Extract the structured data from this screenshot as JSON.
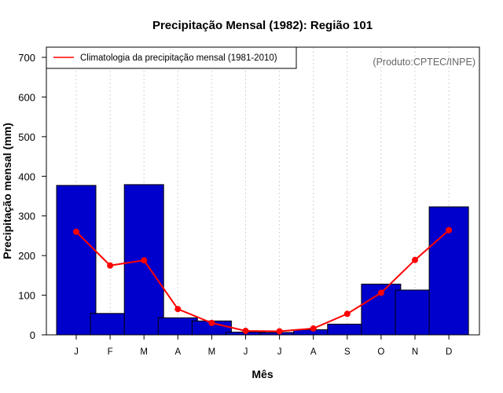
{
  "chart_data": {
    "type": "bar",
    "title": "Precipitação Mensal (1982): Região 101",
    "xlabel": "Mês",
    "ylabel": "Precipitação mensal (mm)",
    "ylim": [
      0,
      700
    ],
    "yticks": [
      0,
      100,
      200,
      300,
      400,
      500,
      600,
      700
    ],
    "grid": true,
    "categories": [
      "J",
      "F",
      "M",
      "A",
      "M",
      "J",
      "J",
      "A",
      "S",
      "O",
      "N",
      "D"
    ],
    "series": [
      {
        "name": "Precipitação mensal (1982)",
        "type": "bar",
        "color": "#0000CC",
        "values": [
          377,
          54,
          379,
          43,
          35,
          7,
          6,
          13,
          27,
          128,
          113,
          323
        ]
      },
      {
        "name": "Climatologia da precipitação mensal (1981-2010)",
        "type": "line",
        "color": "#FF0000",
        "values": [
          260,
          175,
          188,
          65,
          30,
          10,
          9,
          16,
          53,
          106,
          189,
          264
        ]
      }
    ],
    "legend": {
      "placement": "top-left",
      "entries": [
        "Climatologia da precipitação mensal (1981-2010)"
      ]
    },
    "annotation": "(Produto:CPTEC/INPE)"
  }
}
